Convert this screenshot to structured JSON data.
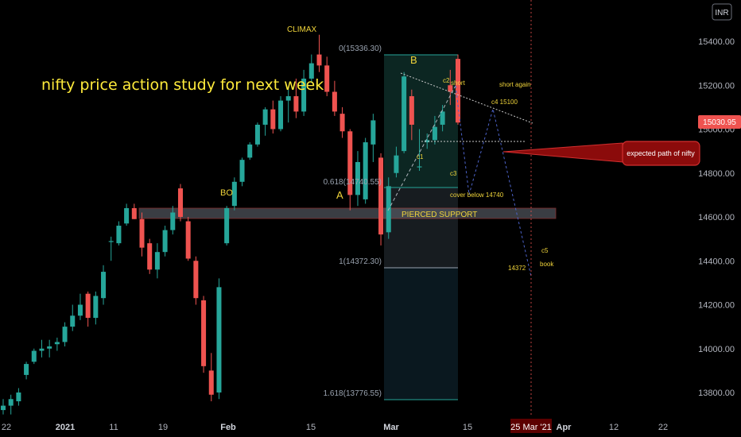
{
  "header": {
    "currency": "INR"
  },
  "chart_data": {
    "type": "candlestick",
    "title": "nifty price action study for next week",
    "y_axis": {
      "side": "right",
      "ticks": [
        13800,
        14000,
        14200,
        14400,
        14600,
        14800,
        15000,
        15200,
        15400
      ],
      "tick_labels": [
        "13800.00",
        "14000.00",
        "14200.00",
        "14400.00",
        "14600.00",
        "14800.00",
        "15000.00",
        "15200.00",
        "15400.00"
      ],
      "ylim": [
        13740,
        15600
      ]
    },
    "x_axis": {
      "tick_labels": [
        "22",
        "2021",
        "11",
        "19",
        "Feb",
        "15",
        "Mar",
        "15",
        "Apr",
        "12",
        "22"
      ],
      "highlighted_date": "25 Mar '21"
    },
    "last_price": {
      "label": "15030.95",
      "value": 15030.95,
      "color": "#ef5350"
    },
    "up_color": "#26a69a",
    "down_color": "#ef5350",
    "candles": [
      {
        "o": 13720,
        "h": 13770,
        "l": 13700,
        "c": 13740
      },
      {
        "o": 13740,
        "h": 13790,
        "l": 13700,
        "c": 13770
      },
      {
        "o": 13760,
        "h": 13820,
        "l": 13740,
        "c": 13800
      },
      {
        "o": 13880,
        "h": 13940,
        "l": 13860,
        "c": 13930
      },
      {
        "o": 13940,
        "h": 14000,
        "l": 13930,
        "c": 13990
      },
      {
        "o": 13990,
        "h": 14040,
        "l": 13960,
        "c": 14000
      },
      {
        "o": 14000,
        "h": 14040,
        "l": 13960,
        "c": 14010
      },
      {
        "o": 14020,
        "h": 14050,
        "l": 13990,
        "c": 14030
      },
      {
        "o": 14030,
        "h": 14120,
        "l": 14010,
        "c": 14100
      },
      {
        "o": 14100,
        "h": 14200,
        "l": 14080,
        "c": 14150
      },
      {
        "o": 14150,
        "h": 14250,
        "l": 14130,
        "c": 14200
      },
      {
        "o": 14250,
        "h": 14260,
        "l": 14100,
        "c": 14140
      },
      {
        "o": 14140,
        "h": 14260,
        "l": 14110,
        "c": 14240
      },
      {
        "o": 14230,
        "h": 14380,
        "l": 14200,
        "c": 14350
      },
      {
        "o": 14490,
        "h": 14510,
        "l": 14400,
        "c": 14490
      },
      {
        "o": 14480,
        "h": 14580,
        "l": 14470,
        "c": 14560
      },
      {
        "o": 14570,
        "h": 14660,
        "l": 14560,
        "c": 14640
      },
      {
        "o": 14640,
        "h": 14660,
        "l": 14590,
        "c": 14590
      },
      {
        "o": 14590,
        "h": 14620,
        "l": 14420,
        "c": 14460
      },
      {
        "o": 14480,
        "h": 14500,
        "l": 14340,
        "c": 14360
      },
      {
        "o": 14360,
        "h": 14480,
        "l": 14320,
        "c": 14440
      },
      {
        "o": 14440,
        "h": 14560,
        "l": 14420,
        "c": 14540
      },
      {
        "o": 14540,
        "h": 14650,
        "l": 14520,
        "c": 14620
      },
      {
        "o": 14730,
        "h": 14750,
        "l": 14580,
        "c": 14600
      },
      {
        "o": 14580,
        "h": 14600,
        "l": 14400,
        "c": 14410
      },
      {
        "o": 14400,
        "h": 14420,
        "l": 14200,
        "c": 14230
      },
      {
        "o": 14220,
        "h": 14240,
        "l": 13890,
        "c": 13920
      },
      {
        "o": 13900,
        "h": 13980,
        "l": 13760,
        "c": 13790
      },
      {
        "o": 13800,
        "h": 14320,
        "l": 13770,
        "c": 14280
      },
      {
        "o": 14480,
        "h": 14650,
        "l": 14470,
        "c": 14640
      },
      {
        "o": 14650,
        "h": 14780,
        "l": 14630,
        "c": 14760
      },
      {
        "o": 14760,
        "h": 14870,
        "l": 14740,
        "c": 14860
      },
      {
        "o": 14870,
        "h": 14940,
        "l": 14860,
        "c": 14930
      },
      {
        "o": 14930,
        "h": 15030,
        "l": 14920,
        "c": 15020
      },
      {
        "o": 15020,
        "h": 15100,
        "l": 14970,
        "c": 15090
      },
      {
        "o": 15090,
        "h": 15130,
        "l": 14980,
        "c": 15000
      },
      {
        "o": 15000,
        "h": 15150,
        "l": 14990,
        "c": 15130
      },
      {
        "o": 15130,
        "h": 15180,
        "l": 15030,
        "c": 15150
      },
      {
        "o": 15150,
        "h": 15230,
        "l": 15050,
        "c": 15080
      },
      {
        "o": 15080,
        "h": 15270,
        "l": 15060,
        "c": 15230
      },
      {
        "o": 15230,
        "h": 15340,
        "l": 15210,
        "c": 15300
      },
      {
        "o": 15340,
        "h": 15430,
        "l": 15260,
        "c": 15290
      },
      {
        "o": 15290,
        "h": 15330,
        "l": 15150,
        "c": 15170
      },
      {
        "o": 15170,
        "h": 15220,
        "l": 15060,
        "c": 15080
      },
      {
        "o": 15070,
        "h": 15100,
        "l": 14960,
        "c": 14990
      },
      {
        "o": 14990,
        "h": 15000,
        "l": 14630,
        "c": 14700
      },
      {
        "o": 14700,
        "h": 14900,
        "l": 14650,
        "c": 14850
      },
      {
        "o": 14680,
        "h": 14960,
        "l": 14660,
        "c": 14940
      },
      {
        "o": 14930,
        "h": 15070,
        "l": 14850,
        "c": 15040
      },
      {
        "o": 14870,
        "h": 14890,
        "l": 14470,
        "c": 14520
      },
      {
        "o": 14530,
        "h": 14780,
        "l": 14500,
        "c": 14740
      },
      {
        "o": 14800,
        "h": 14920,
        "l": 14780,
        "c": 14880
      },
      {
        "o": 14900,
        "h": 15260,
        "l": 14890,
        "c": 15240
      },
      {
        "o": 15150,
        "h": 15180,
        "l": 14950,
        "c": 15020
      },
      {
        "o": 14830,
        "h": 15000,
        "l": 14810,
        "c": 14830
      },
      {
        "o": 14940,
        "h": 14980,
        "l": 14910,
        "c": 14950
      },
      {
        "o": 14950,
        "h": 15060,
        "l": 14930,
        "c": 15010
      },
      {
        "o": 15020,
        "h": 15110,
        "l": 14990,
        "c": 15080
      },
      {
        "o": 15200,
        "h": 15270,
        "l": 15110,
        "c": 15170
      },
      {
        "o": 15320,
        "h": 15340,
        "l": 15020,
        "c": 15030
      }
    ],
    "fib": {
      "levels": [
        {
          "label": "0(15336.30)",
          "value": 15336.3
        },
        {
          "label": "0.618(14740.55)",
          "value": 14740.55
        },
        {
          "label": "1(14372.30)",
          "value": 14372.3
        },
        {
          "label": "1.618(13776.55)",
          "value": 13776.55
        }
      ]
    },
    "support_zone": {
      "label": "PIERCED SUPPORT",
      "range": [
        14615,
        14655
      ]
    },
    "annotations": {
      "climax": "CLIMAX",
      "bo": "BO",
      "a": "A",
      "b": "B",
      "c1": "c1",
      "c2": "c2",
      "short": "short",
      "c3": "c3",
      "short_again": "short again",
      "c4": "c4 15100",
      "cover": "cover below 14740",
      "c5": "c5",
      "book": "book",
      "target": "14372",
      "expected_path": "expected path of nifty"
    }
  }
}
